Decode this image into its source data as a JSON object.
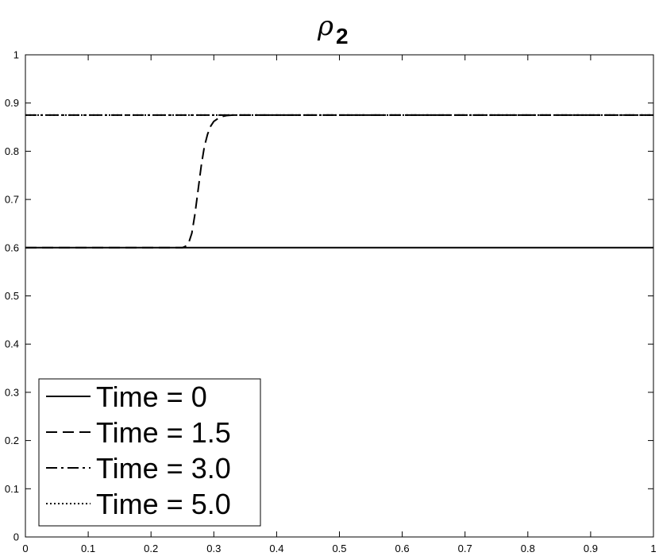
{
  "chart_data": {
    "type": "line",
    "title": {
      "symbol": "ρ",
      "subscript": "2"
    },
    "xlabel": "",
    "ylabel": "",
    "xlim": [
      0,
      1
    ],
    "ylim": [
      0,
      1
    ],
    "x_ticks": [
      "0",
      "0.1",
      "0.2",
      "0.3",
      "0.4",
      "0.5",
      "0.6",
      "0.7",
      "0.8",
      "0.9",
      "1"
    ],
    "y_ticks": [
      "0",
      "0.1",
      "0.2",
      "0.3",
      "0.4",
      "0.5",
      "0.6",
      "0.7",
      "0.8",
      "0.9",
      "1"
    ],
    "grid": false,
    "legend_position": "bottom-left",
    "series": [
      {
        "name": "Time = 0",
        "style": "solid",
        "color": "#000000",
        "x": [
          0,
          1
        ],
        "y": [
          0.6,
          0.6
        ]
      },
      {
        "name": "Time = 1.5",
        "style": "dashed",
        "color": "#000000",
        "x": [
          0,
          0.25,
          0.255,
          0.26,
          0.265,
          0.27,
          0.275,
          0.28,
          0.285,
          0.29,
          0.295,
          0.3,
          0.31,
          0.32,
          0.33,
          1
        ],
        "y": [
          0.6,
          0.6,
          0.603,
          0.61,
          0.63,
          0.67,
          0.72,
          0.77,
          0.81,
          0.835,
          0.852,
          0.862,
          0.871,
          0.874,
          0.875,
          0.875
        ]
      },
      {
        "name": "Time = 3.0",
        "style": "dashdot",
        "color": "#000000",
        "x": [
          0,
          1
        ],
        "y": [
          0.875,
          0.875
        ]
      },
      {
        "name": "Time = 5.0",
        "style": "dotted",
        "color": "#000000",
        "x": [
          0,
          1
        ],
        "y": [
          0.875,
          0.875
        ]
      }
    ]
  }
}
